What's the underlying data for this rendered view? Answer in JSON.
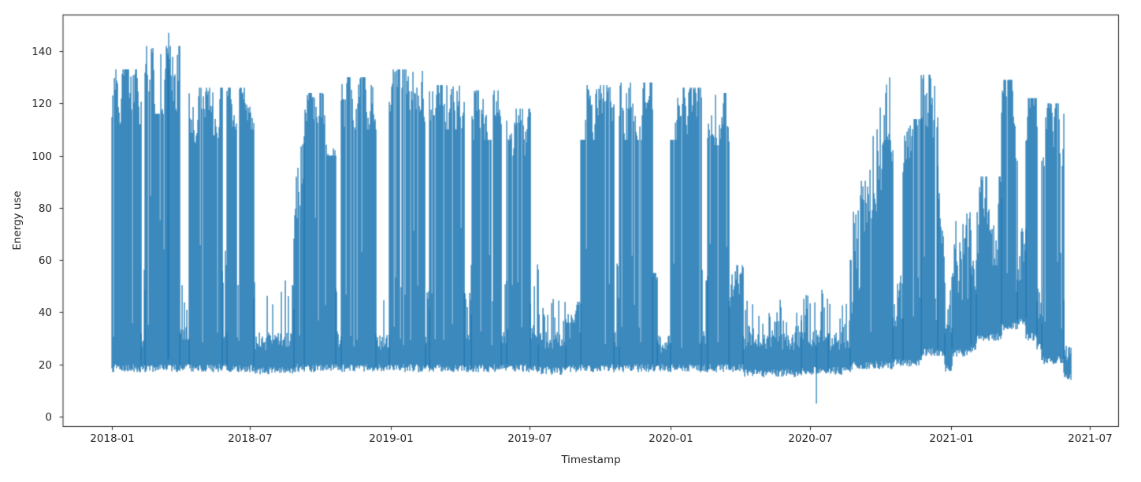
{
  "chart_data": {
    "type": "line",
    "title": "",
    "xlabel": "Timestamp",
    "ylabel": "Energy use",
    "x_tick_labels": [
      "2018-01",
      "2018-07",
      "2019-01",
      "2019-07",
      "2020-01",
      "2020-07",
      "2021-01",
      "2021-07"
    ],
    "y_tick_values": [
      0,
      20,
      40,
      60,
      80,
      100,
      120,
      140
    ],
    "xlim": [
      "2017-11-01",
      "2021-08-07"
    ],
    "ylim": [
      -4,
      154
    ],
    "grid": false,
    "legend": null,
    "series": [
      {
        "name": "Energy use",
        "color": "#1f77b4",
        "data_start": "2018-01-01",
        "data_end": "2021-06-06",
        "sampling": "dense sub-daily trace; values summarized as a min/max envelope per period",
        "baseline_typical": [
          18,
          28
        ],
        "extremes": {
          "max": {
            "date": "2018-03-17",
            "value": 147
          },
          "min": {
            "date": "2020-07-09",
            "value": 5
          }
        },
        "envelope_segments": [
          {
            "start": "2018-01-01",
            "end": "2018-02-09",
            "kind": "high",
            "base": [
              18,
              26
            ],
            "top": [
              112,
              133
            ]
          },
          {
            "start": "2018-02-09",
            "end": "2018-02-14",
            "kind": "low",
            "base": [
              18,
              30
            ],
            "spike": [
              45,
              62
            ],
            "spike_p": 0.5
          },
          {
            "start": "2018-02-14",
            "end": "2018-03-31",
            "kind": "high",
            "base": [
              18,
              26
            ],
            "top": [
              116,
              142
            ]
          },
          {
            "start": "2018-03-31",
            "end": "2018-04-12",
            "kind": "low",
            "base": [
              18,
              32
            ],
            "spike": [
              40,
              52
            ],
            "spike_p": 0.45
          },
          {
            "start": "2018-04-12",
            "end": "2018-05-26",
            "kind": "high",
            "base": [
              18,
              27
            ],
            "top": [
              104,
              126
            ]
          },
          {
            "start": "2018-05-26",
            "end": "2018-06-01",
            "kind": "low",
            "base": [
              18,
              30
            ],
            "spike": [
              50,
              66
            ],
            "spike_p": 0.5
          },
          {
            "start": "2018-06-01",
            "end": "2018-07-06",
            "kind": "high",
            "base": [
              18,
              27
            ],
            "top": [
              110,
              126
            ]
          },
          {
            "start": "2018-07-06",
            "end": "2018-08-27",
            "kind": "low",
            "base": [
              17,
              29
            ],
            "spike": [
              38,
              55
            ],
            "spike_p": 0.25
          },
          {
            "start": "2018-08-27",
            "end": "2018-09-10",
            "kind": "ramp",
            "base": [
              18,
              27
            ],
            "top_from": 70,
            "top_to": 105,
            "jitter": 15
          },
          {
            "start": "2018-09-10",
            "end": "2018-10-21",
            "kind": "high",
            "base": [
              18,
              27
            ],
            "top": [
              100,
              124
            ]
          },
          {
            "start": "2018-10-21",
            "end": "2018-10-28",
            "kind": "low",
            "base": [
              18,
              30
            ],
            "spike": [
              45,
              58
            ],
            "spike_p": 0.45
          },
          {
            "start": "2018-10-28",
            "end": "2018-12-12",
            "kind": "high",
            "base": [
              18,
              26
            ],
            "top": [
              110,
              130
            ]
          },
          {
            "start": "2018-12-12",
            "end": "2018-12-30",
            "kind": "low",
            "base": [
              18,
              28
            ],
            "spike": [
              38,
              50
            ],
            "spike_p": 0.2
          },
          {
            "start": "2018-12-30",
            "end": "2019-02-15",
            "kind": "high",
            "base": [
              18,
              26
            ],
            "top": [
              113,
              133
            ]
          },
          {
            "start": "2019-02-15",
            "end": "2019-02-20",
            "kind": "low",
            "base": [
              18,
              30
            ],
            "spike": [
              40,
              48
            ],
            "spike_p": 0.5
          },
          {
            "start": "2019-02-20",
            "end": "2019-04-06",
            "kind": "high",
            "base": [
              18,
              26
            ],
            "top": [
              110,
              127
            ]
          },
          {
            "start": "2019-04-06",
            "end": "2019-04-16",
            "kind": "low",
            "base": [
              18,
              30
            ],
            "spike": [
              38,
              48
            ],
            "spike_p": 0.5
          },
          {
            "start": "2019-04-16",
            "end": "2019-05-25",
            "kind": "high",
            "base": [
              18,
              27
            ],
            "top": [
              106,
              125
            ]
          },
          {
            "start": "2019-05-25",
            "end": "2019-06-01",
            "kind": "low",
            "base": [
              18,
              30
            ],
            "spike": [
              45,
              58
            ],
            "spike_p": 0.5
          },
          {
            "start": "2019-06-01",
            "end": "2019-07-02",
            "kind": "high",
            "base": [
              18,
              27
            ],
            "top": [
              100,
              118
            ]
          },
          {
            "start": "2019-07-02",
            "end": "2019-07-12",
            "kind": "low",
            "base": [
              18,
              32
            ],
            "spike": [
              40,
              60
            ],
            "spike_p": 0.4
          },
          {
            "start": "2019-07-12",
            "end": "2019-08-17",
            "kind": "low",
            "base": [
              17,
              29
            ],
            "spike": [
              36,
              46
            ],
            "spike_p": 0.35
          },
          {
            "start": "2019-08-17",
            "end": "2019-09-06",
            "kind": "med",
            "base": [
              18,
              28
            ],
            "top": [
              36,
              44
            ]
          },
          {
            "start": "2019-09-06",
            "end": "2019-10-19",
            "kind": "high",
            "base": [
              18,
              27
            ],
            "top": [
              106,
              127
            ]
          },
          {
            "start": "2019-10-19",
            "end": "2019-10-26",
            "kind": "low",
            "base": [
              18,
              30
            ],
            "spike": [
              45,
              60
            ],
            "spike_p": 0.5
          },
          {
            "start": "2019-10-26",
            "end": "2019-12-08",
            "kind": "high",
            "base": [
              18,
              26
            ],
            "top": [
              106,
              128
            ]
          },
          {
            "start": "2019-12-08",
            "end": "2019-12-14",
            "kind": "med",
            "base": [
              18,
              28
            ],
            "top": [
              40,
              55
            ]
          },
          {
            "start": "2019-12-14",
            "end": "2020-01-01",
            "kind": "low",
            "base": [
              18,
              28
            ],
            "spike": [
              35,
              45
            ],
            "spike_p": 0.2
          },
          {
            "start": "2020-01-01",
            "end": "2020-02-10",
            "kind": "high",
            "base": [
              18,
              26
            ],
            "top": [
              106,
              126
            ]
          },
          {
            "start": "2020-02-10",
            "end": "2020-02-18",
            "kind": "low",
            "base": [
              18,
              30
            ],
            "spike": [
              45,
              58
            ],
            "spike_p": 0.5
          },
          {
            "start": "2020-02-18",
            "end": "2020-03-17",
            "kind": "high",
            "base": [
              18,
              26
            ],
            "top": [
              104,
              124
            ]
          },
          {
            "start": "2020-03-17",
            "end": "2020-04-04",
            "kind": "med",
            "base": [
              18,
              30
            ],
            "top": [
              42,
              58
            ]
          },
          {
            "start": "2020-04-04",
            "end": "2020-06-20",
            "kind": "low",
            "base": [
              16,
              29
            ],
            "spike": [
              33,
              45
            ],
            "spike_p": 0.3
          },
          {
            "start": "2020-06-20",
            "end": "2020-07-25",
            "kind": "low",
            "base": [
              17,
              30
            ],
            "spike": [
              36,
              50
            ],
            "spike_p": 0.45
          },
          {
            "start": "2020-07-25",
            "end": "2020-08-22",
            "kind": "low",
            "base": [
              17,
              29
            ],
            "spike": [
              33,
              44
            ],
            "spike_p": 0.3
          },
          {
            "start": "2020-08-22",
            "end": "2020-10-17",
            "kind": "ramp",
            "base": [
              19,
              31
            ],
            "top_from": 55,
            "top_to": 117,
            "jitter": 20
          },
          {
            "start": "2020-10-17",
            "end": "2020-10-30",
            "kind": "low",
            "base": [
              20,
              36
            ],
            "spike": [
              42,
              60
            ],
            "spike_p": 0.45
          },
          {
            "start": "2020-10-30",
            "end": "2020-11-23",
            "kind": "high",
            "base": [
              20,
              31
            ],
            "top": [
              86,
              114
            ]
          },
          {
            "start": "2020-11-23",
            "end": "2020-12-14",
            "kind": "high",
            "base": [
              24,
              36
            ],
            "top": [
              98,
              131
            ]
          },
          {
            "start": "2020-12-14",
            "end": "2020-12-24",
            "kind": "ramp",
            "base": [
              24,
              36
            ],
            "top_from": 90,
            "top_to": 60,
            "jitter": 10
          },
          {
            "start": "2020-12-24",
            "end": "2021-01-02",
            "kind": "low",
            "base": [
              18,
              32
            ],
            "spike": [
              40,
              50
            ],
            "spike_p": 0.3
          },
          {
            "start": "2021-01-02",
            "end": "2021-01-27",
            "kind": "med",
            "base": [
              24,
              38
            ],
            "top": [
              52,
              80
            ]
          },
          {
            "start": "2021-01-27",
            "end": "2021-02-03",
            "kind": "med",
            "base": [
              26,
              40
            ],
            "top": [
              45,
              60
            ]
          },
          {
            "start": "2021-02-03",
            "end": "2021-03-08",
            "kind": "med",
            "base": [
              30,
              44
            ],
            "top": [
              58,
              92
            ]
          },
          {
            "start": "2021-03-08",
            "end": "2021-03-28",
            "kind": "high",
            "base": [
              34,
              47
            ],
            "top": [
              95,
              129
            ]
          },
          {
            "start": "2021-03-28",
            "end": "2021-04-09",
            "kind": "med",
            "base": [
              36,
              48
            ],
            "top": [
              52,
              75
            ]
          },
          {
            "start": "2021-04-09",
            "end": "2021-04-23",
            "kind": "high",
            "base": [
              30,
              42
            ],
            "top": [
              100,
              122
            ]
          },
          {
            "start": "2021-04-23",
            "end": "2021-04-29",
            "kind": "low",
            "base": [
              26,
              36
            ],
            "spike": [
              42,
              50
            ],
            "spike_p": 0.4
          },
          {
            "start": "2021-04-29",
            "end": "2021-05-28",
            "kind": "high",
            "base": [
              21,
              31
            ],
            "top": [
              96,
              120
            ]
          },
          {
            "start": "2021-05-28",
            "end": "2021-06-06",
            "kind": "low",
            "base": [
              15,
              24
            ],
            "spike": [
              40,
              46
            ],
            "spike_p": 0.25
          }
        ]
      }
    ]
  },
  "figure": {
    "background": "#ffffff",
    "spine_color": "#262626",
    "tick_color": "#262626"
  }
}
